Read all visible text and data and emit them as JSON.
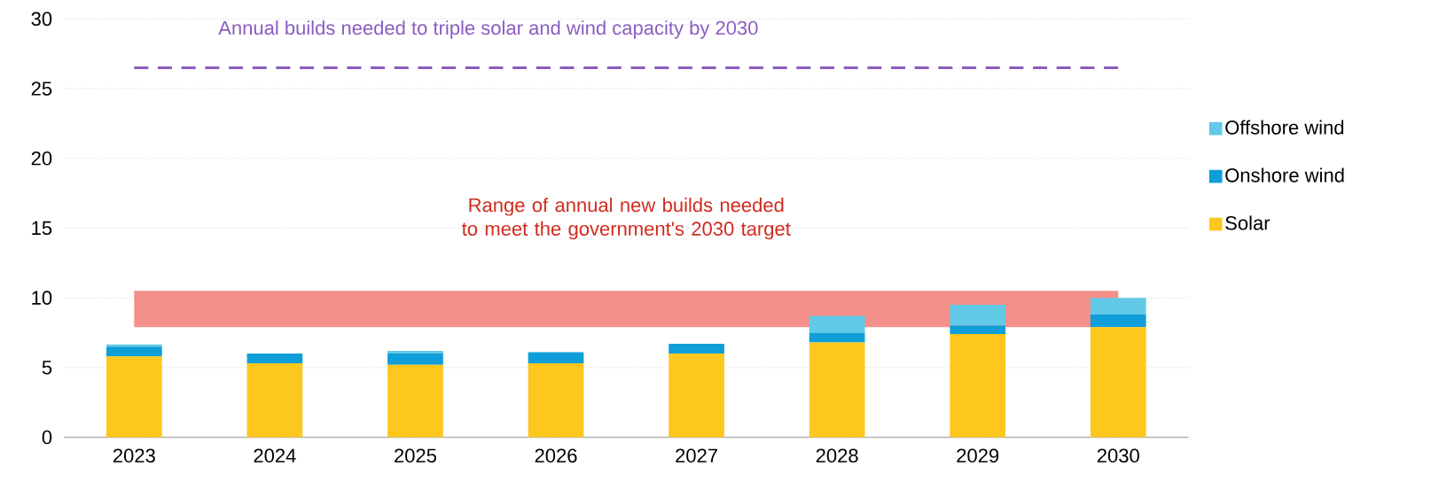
{
  "chart_data": {
    "type": "bar",
    "stacked": true,
    "categories": [
      "2023",
      "2024",
      "2025",
      "2026",
      "2027",
      "2028",
      "2029",
      "2030"
    ],
    "series": [
      {
        "name": "Solar",
        "color": "#fdc71e",
        "values": [
          5.8,
          5.3,
          5.2,
          5.3,
          6.0,
          6.8,
          7.4,
          7.9
        ]
      },
      {
        "name": "Onshore wind",
        "color": "#0f9ed8",
        "values": [
          0.7,
          0.7,
          0.8,
          0.8,
          0.7,
          0.7,
          0.6,
          0.9
        ]
      },
      {
        "name": "Offshore wind",
        "color": "#62c9e6",
        "values": [
          0.15,
          null,
          0.2,
          null,
          null,
          1.2,
          1.5,
          1.2
        ]
      }
    ],
    "ylim": [
      0,
      30
    ],
    "yticks": [
      0,
      5,
      10,
      15,
      20,
      25,
      30
    ],
    "grid": "y",
    "legend": "right",
    "ref_lines": [
      {
        "axis": "y",
        "value": 26.5,
        "label": "Annual builds needed to triple solar and wind capacity by 2030",
        "color": "#8a5cbf",
        "line_style": "dashed"
      }
    ],
    "bands": [
      {
        "axis": "y",
        "from": 7.9,
        "to": 10.5,
        "label": "Range of annual new builds needed to meet the government's 2030 target",
        "color": "#f4908a"
      }
    ]
  }
}
